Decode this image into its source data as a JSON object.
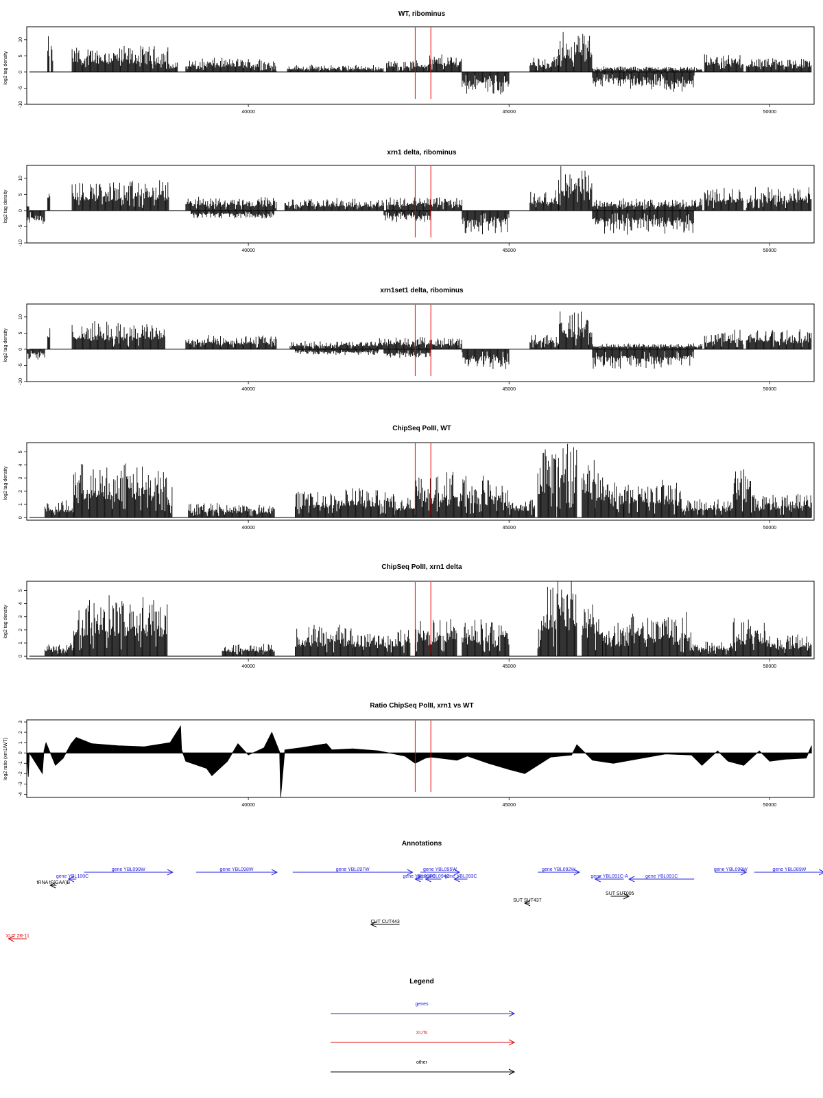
{
  "colors": {
    "gene": "#2222dd",
    "xut": "#dd1111",
    "other": "#000000",
    "marker": "#ee0000",
    "signal": "#000000",
    "frame": "#000000"
  },
  "chart_data": [
    {
      "type": "bar",
      "title": "WT, ribominus",
      "ylabel": "log2 tag density",
      "xlim": [
        35750,
        50850
      ],
      "ylim": [
        -10,
        14
      ],
      "yticks": [
        -10,
        -5,
        0,
        5,
        10
      ],
      "xticks": [
        40000,
        45000,
        50000
      ],
      "markers": [
        43200,
        43500
      ],
      "series": {
        "pos": [
          {
            "range": [
              36150,
              36180
            ],
            "level": 9
          },
          {
            "range": [
              36220,
              36260
            ],
            "level": 8
          },
          {
            "range": [
              36620,
              38480
            ],
            "level": 6.5
          },
          {
            "range": [
              38480,
              38650
            ],
            "level": 2.5
          },
          {
            "range": [
              38800,
              40550
            ],
            "level": 3.5
          },
          {
            "range": [
              40750,
              42600
            ],
            "level": 1.8
          },
          {
            "range": [
              42650,
              43450
            ],
            "level": 3
          },
          {
            "range": [
              43450,
              44100
            ],
            "level": 4.5
          },
          {
            "range": [
              45400,
              45950
            ],
            "level": 4
          },
          {
            "range": [
              45950,
              46600
            ],
            "level": 10
          },
          {
            "range": [
              46600,
              48700
            ],
            "level": 1.5
          },
          {
            "range": [
              48750,
              49500
            ],
            "level": 4.5
          },
          {
            "range": [
              49550,
              50800
            ],
            "level": 3.5
          }
        ],
        "neg": [
          {
            "range": [
              44100,
              45000
            ],
            "level": 5.5
          },
          {
            "range": [
              46600,
              47200
            ],
            "level": 4
          },
          {
            "range": [
              47200,
              48000
            ],
            "level": 4.5
          },
          {
            "range": [
              48000,
              48550
            ],
            "level": 6
          }
        ]
      }
    },
    {
      "type": "bar",
      "title": "xrn1 delta, ribominus",
      "ylabel": "log2 tag density",
      "xlim": [
        35750,
        50850
      ],
      "ylim": [
        -10,
        14
      ],
      "yticks": [
        -10,
        -5,
        0,
        5,
        10
      ],
      "xticks": [
        40000,
        45000,
        50000
      ],
      "markers": [
        43200,
        43500
      ],
      "series": {
        "pos": [
          {
            "range": [
              35760,
              35800
            ],
            "level": 2.5
          },
          {
            "range": [
              36150,
              36200
            ],
            "level": 7
          },
          {
            "range": [
              36620,
              38480
            ],
            "level": 7.5
          },
          {
            "range": [
              38800,
              40550
            ],
            "level": 3.5
          },
          {
            "range": [
              40700,
              42600
            ],
            "level": 3
          },
          {
            "range": [
              42650,
              44100
            ],
            "level": 3.5
          },
          {
            "range": [
              45400,
              45950
            ],
            "level": 5
          },
          {
            "range": [
              45950,
              46600
            ],
            "level": 11
          },
          {
            "range": [
              46600,
              48700
            ],
            "level": 3
          },
          {
            "range": [
              48750,
              49500
            ],
            "level": 6
          },
          {
            "range": [
              49550,
              50800
            ],
            "level": 6
          }
        ],
        "neg": [
          {
            "range": [
              35760,
              36100
            ],
            "level": 3.5
          },
          {
            "range": [
              38900,
              40500
            ],
            "level": 2
          },
          {
            "range": [
              42600,
              43500
            ],
            "level": 3
          },
          {
            "range": [
              44100,
              45000
            ],
            "level": 6
          },
          {
            "range": [
              46600,
              48550
            ],
            "level": 6
          }
        ]
      }
    },
    {
      "type": "bar",
      "title": "xrn1set1 delta, ribominus",
      "ylabel": "log2 tag density",
      "xlim": [
        35750,
        50850
      ],
      "ylim": [
        -10,
        14
      ],
      "yticks": [
        -10,
        -5,
        0,
        5,
        10
      ],
      "xticks": [
        40000,
        45000,
        50000
      ],
      "markers": [
        43200,
        43500
      ],
      "series": {
        "pos": [
          {
            "range": [
              36150,
              36200
            ],
            "level": 6
          },
          {
            "range": [
              36620,
              38400
            ],
            "level": 7
          },
          {
            "range": [
              38800,
              40550
            ],
            "level": 3.5
          },
          {
            "range": [
              40800,
              42500
            ],
            "level": 2
          },
          {
            "range": [
              42500,
              44100
            ],
            "level": 3
          },
          {
            "range": [
              45400,
              45950
            ],
            "level": 4
          },
          {
            "range": [
              45950,
              46600
            ],
            "level": 9.5
          },
          {
            "range": [
              46600,
              48700
            ],
            "level": 1.5
          },
          {
            "range": [
              48750,
              49500
            ],
            "level": 5
          },
          {
            "range": [
              49550,
              50800
            ],
            "level": 5
          }
        ],
        "neg": [
          {
            "range": [
              35760,
              36100
            ],
            "level": 2.5
          },
          {
            "range": [
              40900,
              42500
            ],
            "level": 1.5
          },
          {
            "range": [
              42600,
              43500
            ],
            "level": 2.5
          },
          {
            "range": [
              44100,
              45000
            ],
            "level": 5.5
          },
          {
            "range": [
              46600,
              48550
            ],
            "level": 5
          }
        ]
      }
    },
    {
      "type": "bar",
      "title": "ChipSeq PolII, WT",
      "ylabel": "log2 tag density",
      "xlim": [
        35750,
        50850
      ],
      "ylim": [
        -0.2,
        5.7
      ],
      "yticks": [
        0,
        1,
        2,
        3,
        4,
        5
      ],
      "xticks": [
        40000,
        45000,
        50000
      ],
      "markers": [
        43200,
        43500
      ],
      "series": {
        "pos": [
          {
            "range": [
              36100,
              36650
            ],
            "level": 1
          },
          {
            "range": [
              36650,
              38450
            ],
            "level": 3.3
          },
          {
            "range": [
              38450,
              38550
            ],
            "level": 2
          },
          {
            "range": [
              38850,
              40500
            ],
            "level": 0.9
          },
          {
            "range": [
              40900,
              42800
            ],
            "level": 1.8
          },
          {
            "range": [
              42800,
              43200
            ],
            "level": 1.2
          },
          {
            "range": [
              43200,
              44100
            ],
            "level": 2.8
          },
          {
            "range": [
              44100,
              45000
            ],
            "level": 2.5
          },
          {
            "range": [
              45000,
              45500
            ],
            "level": 1.2
          },
          {
            "range": [
              45550,
              45900
            ],
            "level": 4.4
          },
          {
            "range": [
              45920,
              46300
            ],
            "level": 5.2
          },
          {
            "range": [
              46400,
              46650
            ],
            "level": 4
          },
          {
            "range": [
              46650,
              47200
            ],
            "level": 2.8
          },
          {
            "range": [
              47200,
              48300
            ],
            "level": 2.3
          },
          {
            "range": [
              48300,
              49300
            ],
            "level": 1.2
          },
          {
            "range": [
              49300,
              49700
            ],
            "level": 3
          },
          {
            "range": [
              49700,
              50800
            ],
            "level": 1.5
          }
        ],
        "neg": []
      }
    },
    {
      "type": "bar",
      "title": "ChipSeq PolII, xrn1 delta",
      "ylabel": "log2 tag density",
      "xlim": [
        35750,
        50850
      ],
      "ylim": [
        -0.2,
        5.7
      ],
      "yticks": [
        0,
        1,
        2,
        3,
        4,
        5
      ],
      "xticks": [
        40000,
        45000,
        50000
      ],
      "markers": [
        43200,
        43500
      ],
      "series": {
        "pos": [
          {
            "range": [
              36100,
              36650
            ],
            "level": 0.9
          },
          {
            "range": [
              36650,
              38450
            ],
            "level": 3.6
          },
          {
            "range": [
              39500,
              40500
            ],
            "level": 0.8
          },
          {
            "range": [
              40900,
              42000
            ],
            "level": 2
          },
          {
            "range": [
              42000,
              43100
            ],
            "level": 1.7
          },
          {
            "range": [
              43200,
              44000
            ],
            "level": 2.3
          },
          {
            "range": [
              44100,
              45000
            ],
            "level": 2.3
          },
          {
            "range": [
              45550,
              45900
            ],
            "level": 4.2
          },
          {
            "range": [
              45920,
              46300
            ],
            "level": 5.2
          },
          {
            "range": [
              46400,
              46800
            ],
            "level": 3.3
          },
          {
            "range": [
              46800,
              47300
            ],
            "level": 2
          },
          {
            "range": [
              47300,
              48500
            ],
            "level": 2.7
          },
          {
            "range": [
              48500,
              49300
            ],
            "level": 1
          },
          {
            "range": [
              49300,
              50000
            ],
            "level": 2.3
          },
          {
            "range": [
              50000,
              50800
            ],
            "level": 1.4
          }
        ],
        "neg": []
      }
    },
    {
      "type": "area",
      "title": "Ratio ChipSeq PolII, xrn1 vs WT",
      "ylabel": "log2 ratio (xrn1/WT)",
      "xlim": [
        35750,
        50850
      ],
      "ylim": [
        -4.3,
        3.2
      ],
      "yticks": [
        -4,
        -3,
        -2,
        -1,
        0,
        1,
        2,
        3
      ],
      "xticks": [
        40000,
        45000,
        50000
      ],
      "markers": [
        43200,
        43500
      ],
      "x": [
        35750,
        35780,
        35800,
        36050,
        36080,
        36120,
        36300,
        36450,
        36600,
        36700,
        37000,
        37500,
        38000,
        38500,
        38700,
        38720,
        38800,
        39200,
        39300,
        39600,
        39800,
        40000,
        40300,
        40450,
        40600,
        40620,
        40700,
        41000,
        41500,
        41600,
        42000,
        42500,
        43000,
        43200,
        43400,
        43500,
        44000,
        44200,
        44600,
        45000,
        45300,
        45800,
        46200,
        46300,
        46600,
        47000,
        48000,
        48500,
        48700,
        49000,
        49200,
        49500,
        49800,
        50000,
        50300,
        50700,
        50800
      ],
      "y": [
        0,
        -2.3,
        0,
        -2.0,
        0.2,
        1,
        -1.2,
        -0.5,
        0.9,
        1.5,
        0.9,
        0.7,
        0.6,
        1.0,
        2.6,
        0.3,
        -0.8,
        -1.5,
        -2.2,
        -0.8,
        0.9,
        -0.2,
        0.5,
        2.0,
        0.1,
        -4.3,
        0.3,
        0.5,
        0.9,
        0.3,
        0.4,
        0.2,
        -0.3,
        -1.0,
        -0.5,
        -0.4,
        -0.7,
        -0.3,
        -1.0,
        -1.6,
        -2.0,
        -0.4,
        -0.2,
        0.8,
        -0.7,
        -1.0,
        -0.1,
        -0.2,
        -1.2,
        0.2,
        -0.8,
        -1.2,
        0.2,
        -0.8,
        -0.6,
        -0.5,
        0.7
      ]
    }
  ],
  "annotations": {
    "title": "Annotations",
    "features": [
      {
        "label": "gene YBL099W",
        "kind": "gene",
        "from": 36850,
        "to": 38550
      },
      {
        "label": "gene YBL100C",
        "kind": "gene",
        "from": 36700,
        "to": 36550
      },
      {
        "label": "tRNA tF(GAA)B",
        "kind": "other",
        "from": 36320,
        "to": 36200
      },
      {
        "label": "gene YBL098W",
        "kind": "gene",
        "from": 39000,
        "to": 40550
      },
      {
        "label": "gene YBL097W",
        "kind": "gene",
        "from": 40850,
        "to": 43150
      },
      {
        "label": "gene YBL095W",
        "kind": "gene",
        "from": 43300,
        "to": 44050
      },
      {
        "label": "gene YBL096C",
        "kind": "gene",
        "from": 43350,
        "to": 43200
      },
      {
        "label": "gene YBL094C",
        "kind": "gene",
        "from": 43700,
        "to": 43400
      },
      {
        "label": "gene YBL093C",
        "kind": "gene",
        "from": 44200,
        "to": 43950
      },
      {
        "label": "gene YBL092W",
        "kind": "gene",
        "from": 45550,
        "to": 46350
      },
      {
        "label": "gene YBL091C-A",
        "kind": "gene",
        "from": 47200,
        "to": 46650
      },
      {
        "label": "gene YBL091C",
        "kind": "gene",
        "from": 48550,
        "to": 47300
      },
      {
        "label": "gene YBL090W",
        "kind": "gene",
        "from": 48950,
        "to": 49550
      },
      {
        "label": "gene YBL089W",
        "kind": "gene",
        "from": 49700,
        "to": 51050
      },
      {
        "label": "SUT SUT437",
        "kind": "other",
        "from": 45400,
        "to": 45300
      },
      {
        "label": "SUT SUT005",
        "kind": "other",
        "from": 46950,
        "to": 47300
      },
      {
        "label": "CUT CUT443",
        "kind": "other",
        "from": 42900,
        "to": 42350
      },
      {
        "label": "XUT 2R-11",
        "kind": "xut",
        "from": 35750,
        "to": 35400
      }
    ]
  },
  "legend": {
    "title": "Legend",
    "items": [
      {
        "label": "genes",
        "kind": "gene"
      },
      {
        "label": "XUTs",
        "kind": "xut"
      },
      {
        "label": "other",
        "kind": "other"
      }
    ]
  }
}
